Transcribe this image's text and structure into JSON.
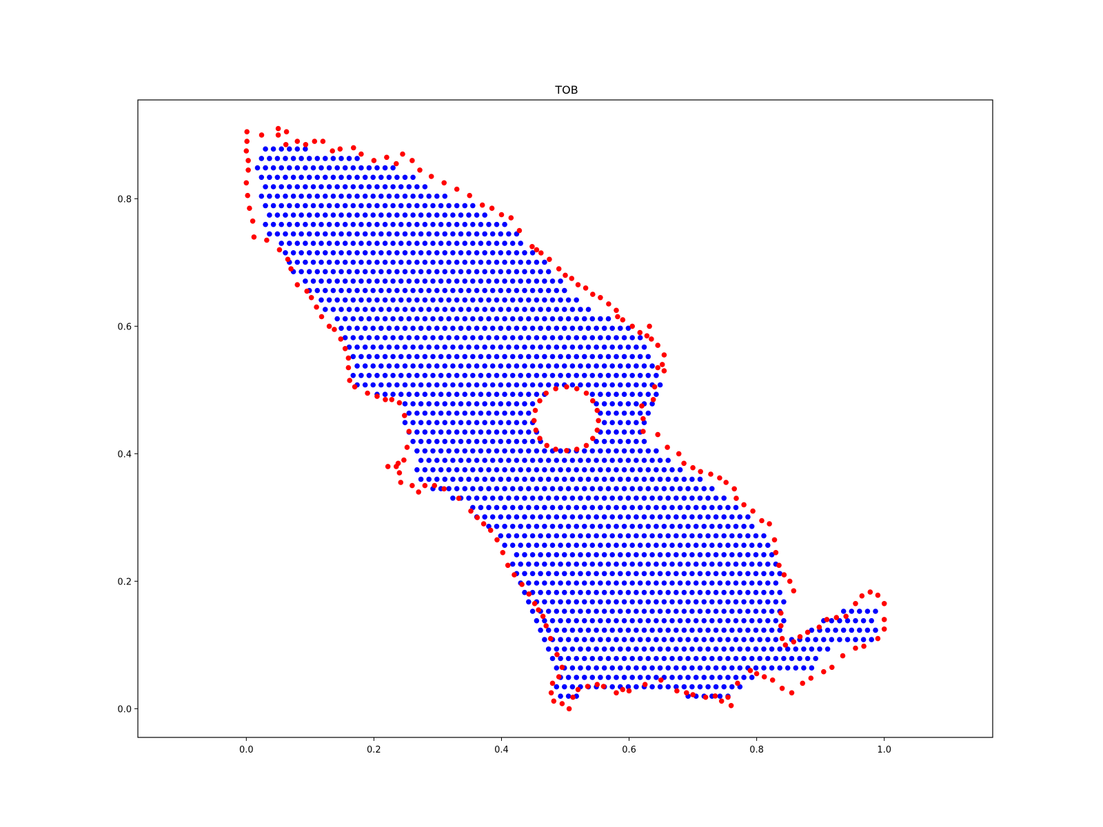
{
  "chart_data": {
    "type": "scatter",
    "title": "TOB",
    "xlabel": "",
    "ylabel": "",
    "xlim": [
      -0.17,
      1.17
    ],
    "ylim": [
      -0.045,
      0.955
    ],
    "grid": false,
    "legend": "none",
    "xticks": [
      0.0,
      0.2,
      0.4,
      0.6,
      0.8,
      1.0
    ],
    "xtick_labels": [
      "0.0",
      "0.2",
      "0.4",
      "0.6",
      "0.8",
      "1.0"
    ],
    "yticks": [
      0.0,
      0.2,
      0.4,
      0.6,
      0.8
    ],
    "ytick_labels": [
      "0.0",
      "0.2",
      "0.4",
      "0.6",
      "0.8"
    ],
    "series": [
      {
        "color": "#0000ff",
        "marker": "circle",
        "role": "interior",
        "region_outline": [
          [
            0.03,
            0.89
          ],
          [
            0.12,
            0.875
          ],
          [
            0.24,
            0.85
          ],
          [
            0.3,
            0.81
          ],
          [
            0.36,
            0.79
          ],
          [
            0.42,
            0.75
          ],
          [
            0.47,
            0.7
          ],
          [
            0.52,
            0.64
          ],
          [
            0.58,
            0.61
          ],
          [
            0.63,
            0.575
          ],
          [
            0.65,
            0.51
          ],
          [
            0.62,
            0.43
          ],
          [
            0.68,
            0.38
          ],
          [
            0.76,
            0.33
          ],
          [
            0.82,
            0.27
          ],
          [
            0.85,
            0.17
          ],
          [
            0.84,
            0.1
          ],
          [
            0.95,
            0.165
          ],
          [
            0.99,
            0.165
          ],
          [
            0.99,
            0.11
          ],
          [
            0.93,
            0.1
          ],
          [
            0.87,
            0.05
          ],
          [
            0.81,
            0.06
          ],
          [
            0.75,
            0.015
          ],
          [
            0.55,
            0.03
          ],
          [
            0.49,
            0.01
          ],
          [
            0.48,
            0.05
          ],
          [
            0.44,
            0.15
          ],
          [
            0.41,
            0.25
          ],
          [
            0.34,
            0.32
          ],
          [
            0.27,
            0.35
          ],
          [
            0.26,
            0.4
          ],
          [
            0.24,
            0.48
          ],
          [
            0.17,
            0.5
          ],
          [
            0.16,
            0.56
          ],
          [
            0.12,
            0.63
          ],
          [
            0.07,
            0.69
          ],
          [
            0.03,
            0.75
          ],
          [
            0.02,
            0.82
          ],
          [
            0.01,
            0.87
          ]
        ],
        "hole_center": [
          0.502,
          0.455
        ],
        "hole_radius": 0.05
      },
      {
        "color": "#ff0000",
        "marker": "circle",
        "role": "boundary",
        "points": [
          [
            0.001,
            0.905
          ],
          [
            0.024,
            0.9
          ],
          [
            0.05,
            0.91
          ],
          [
            0.063,
            0.905
          ],
          [
            0.08,
            0.89
          ],
          [
            0.093,
            0.885
          ],
          [
            0.107,
            0.89
          ],
          [
            0.12,
            0.89
          ],
          [
            0.135,
            0.875
          ],
          [
            0.147,
            0.878
          ],
          [
            0.168,
            0.88
          ],
          [
            0.18,
            0.87
          ],
          [
            0.2,
            0.86
          ],
          [
            0.22,
            0.865
          ],
          [
            0.235,
            0.855
          ],
          [
            0.245,
            0.87
          ],
          [
            0.26,
            0.86
          ],
          [
            0.272,
            0.845
          ],
          [
            0.29,
            0.835
          ],
          [
            0.31,
            0.825
          ],
          [
            0.33,
            0.815
          ],
          [
            0.35,
            0.805
          ],
          [
            0.37,
            0.79
          ],
          [
            0.385,
            0.785
          ],
          [
            0.4,
            0.775
          ],
          [
            0.415,
            0.77
          ],
          [
            0.428,
            0.75
          ],
          [
            0.448,
            0.725
          ],
          [
            0.455,
            0.72
          ],
          [
            0.462,
            0.715
          ],
          [
            0.475,
            0.705
          ],
          [
            0.49,
            0.69
          ],
          [
            0.5,
            0.68
          ],
          [
            0.51,
            0.675
          ],
          [
            0.52,
            0.665
          ],
          [
            0.532,
            0.66
          ],
          [
            0.543,
            0.65
          ],
          [
            0.555,
            0.645
          ],
          [
            0.568,
            0.635
          ],
          [
            0.58,
            0.625
          ],
          [
            0.582,
            0.615
          ],
          [
            0.59,
            0.61
          ],
          [
            0.605,
            0.6
          ],
          [
            0.617,
            0.59
          ],
          [
            0.628,
            0.585
          ],
          [
            0.635,
            0.58
          ],
          [
            0.632,
            0.6
          ],
          [
            0.645,
            0.57
          ],
          [
            0.655,
            0.555
          ],
          [
            0.652,
            0.54
          ],
          [
            0.655,
            0.53
          ],
          [
            0.645,
            0.535
          ],
          [
            0.64,
            0.505
          ],
          [
            0.638,
            0.485
          ],
          [
            0.62,
            0.475
          ],
          [
            0.622,
            0.455
          ],
          [
            0.622,
            0.435
          ],
          [
            0.645,
            0.43
          ],
          [
            0.66,
            0.41
          ],
          [
            0.678,
            0.4
          ],
          [
            0.686,
            0.385
          ],
          [
            0.7,
            0.378
          ],
          [
            0.712,
            0.372
          ],
          [
            0.728,
            0.368
          ],
          [
            0.742,
            0.362
          ],
          [
            0.752,
            0.355
          ],
          [
            0.765,
            0.345
          ],
          [
            0.768,
            0.33
          ],
          [
            0.78,
            0.32
          ],
          [
            0.794,
            0.31
          ],
          [
            0.808,
            0.295
          ],
          [
            0.82,
            0.29
          ],
          [
            0.828,
            0.265
          ],
          [
            0.83,
            0.245
          ],
          [
            0.835,
            0.225
          ],
          [
            0.843,
            0.21
          ],
          [
            0.852,
            0.2
          ],
          [
            0.858,
            0.185
          ],
          [
            0.838,
            0.15
          ],
          [
            0.838,
            0.13
          ],
          [
            0.84,
            0.11
          ],
          [
            0.845,
            0.1
          ],
          [
            0.858,
            0.105
          ],
          [
            0.868,
            0.113
          ],
          [
            0.88,
            0.12
          ],
          [
            0.898,
            0.128
          ],
          [
            0.91,
            0.14
          ],
          [
            0.925,
            0.143
          ],
          [
            0.94,
            0.145
          ],
          [
            0.955,
            0.165
          ],
          [
            0.965,
            0.177
          ],
          [
            0.978,
            0.183
          ],
          [
            0.99,
            0.178
          ],
          [
            1.0,
            0.165
          ],
          [
            1.0,
            0.14
          ],
          [
            1.0,
            0.125
          ],
          [
            0.99,
            0.11
          ],
          [
            0.968,
            0.098
          ],
          [
            0.955,
            0.095
          ],
          [
            0.935,
            0.083
          ],
          [
            0.918,
            0.065
          ],
          [
            0.905,
            0.058
          ],
          [
            0.885,
            0.048
          ],
          [
            0.872,
            0.04
          ],
          [
            0.855,
            0.025
          ],
          [
            0.84,
            0.032
          ],
          [
            0.825,
            0.045
          ],
          [
            0.812,
            0.05
          ],
          [
            0.8,
            0.055
          ],
          [
            0.79,
            0.06
          ],
          [
            0.77,
            0.04
          ],
          [
            0.755,
            0.018
          ],
          [
            0.76,
            0.005
          ],
          [
            0.745,
            0.012
          ],
          [
            0.735,
            0.02
          ],
          [
            0.72,
            0.018
          ],
          [
            0.7,
            0.022
          ],
          [
            0.69,
            0.025
          ],
          [
            0.675,
            0.028
          ],
          [
            0.65,
            0.045
          ],
          [
            0.625,
            0.038
          ],
          [
            0.6,
            0.028
          ],
          [
            0.59,
            0.03
          ],
          [
            0.58,
            0.025
          ],
          [
            0.56,
            0.035
          ],
          [
            0.55,
            0.038
          ],
          [
            0.535,
            0.035
          ],
          [
            0.52,
            0.03
          ],
          [
            0.512,
            0.018
          ],
          [
            0.506,
            0.0
          ],
          [
            0.495,
            0.008
          ],
          [
            0.482,
            0.012
          ],
          [
            0.478,
            0.025
          ],
          [
            0.48,
            0.04
          ],
          [
            0.49,
            0.05
          ],
          [
            0.495,
            0.065
          ],
          [
            0.487,
            0.085
          ],
          [
            0.477,
            0.11
          ],
          [
            0.47,
            0.13
          ],
          [
            0.465,
            0.145
          ],
          [
            0.458,
            0.155
          ],
          [
            0.452,
            0.165
          ],
          [
            0.443,
            0.18
          ],
          [
            0.432,
            0.195
          ],
          [
            0.42,
            0.21
          ],
          [
            0.41,
            0.225
          ],
          [
            0.402,
            0.245
          ],
          [
            0.393,
            0.265
          ],
          [
            0.383,
            0.28
          ],
          [
            0.372,
            0.29
          ],
          [
            0.362,
            0.3
          ],
          [
            0.352,
            0.31
          ],
          [
            0.333,
            0.33
          ],
          [
            0.31,
            0.345
          ],
          [
            0.295,
            0.35
          ],
          [
            0.28,
            0.35
          ],
          [
            0.27,
            0.34
          ],
          [
            0.26,
            0.35
          ],
          [
            0.242,
            0.355
          ],
          [
            0.24,
            0.37
          ],
          [
            0.235,
            0.38
          ],
          [
            0.222,
            0.38
          ],
          [
            0.238,
            0.385
          ],
          [
            0.247,
            0.39
          ],
          [
            0.252,
            0.41
          ],
          [
            0.255,
            0.435
          ],
          [
            0.248,
            0.46
          ],
          [
            0.24,
            0.48
          ],
          [
            0.228,
            0.485
          ],
          [
            0.218,
            0.485
          ],
          [
            0.205,
            0.49
          ],
          [
            0.19,
            0.495
          ],
          [
            0.17,
            0.505
          ],
          [
            0.162,
            0.515
          ],
          [
            0.16,
            0.535
          ],
          [
            0.16,
            0.55
          ],
          [
            0.155,
            0.565
          ],
          [
            0.148,
            0.58
          ],
          [
            0.138,
            0.595
          ],
          [
            0.13,
            0.6
          ],
          [
            0.118,
            0.615
          ],
          [
            0.11,
            0.63
          ],
          [
            0.102,
            0.645
          ],
          [
            0.095,
            0.655
          ],
          [
            0.08,
            0.665
          ],
          [
            0.07,
            0.69
          ],
          [
            0.065,
            0.705
          ],
          [
            0.052,
            0.72
          ],
          [
            0.032,
            0.735
          ],
          [
            0.012,
            0.74
          ],
          [
            0.01,
            0.765
          ],
          [
            0.005,
            0.785
          ],
          [
            0.002,
            0.805
          ],
          [
            0.0,
            0.825
          ],
          [
            0.003,
            0.845
          ],
          [
            0.003,
            0.86
          ],
          [
            0.0,
            0.875
          ],
          [
            0.001,
            0.89
          ],
          [
            0.05,
            0.9
          ],
          [
            0.062,
            0.885
          ],
          [
            0.502,
            0.505
          ],
          [
            0.485,
            0.502
          ],
          [
            0.518,
            0.502
          ],
          [
            0.47,
            0.495
          ],
          [
            0.533,
            0.495
          ],
          [
            0.46,
            0.483
          ],
          [
            0.543,
            0.483
          ],
          [
            0.453,
            0.468
          ],
          [
            0.55,
            0.468
          ],
          [
            0.451,
            0.452
          ],
          [
            0.552,
            0.452
          ],
          [
            0.454,
            0.437
          ],
          [
            0.55,
            0.437
          ],
          [
            0.46,
            0.424
          ],
          [
            0.543,
            0.424
          ],
          [
            0.471,
            0.413
          ],
          [
            0.533,
            0.413
          ],
          [
            0.485,
            0.407
          ],
          [
            0.518,
            0.407
          ],
          [
            0.502,
            0.405
          ]
        ]
      }
    ]
  }
}
